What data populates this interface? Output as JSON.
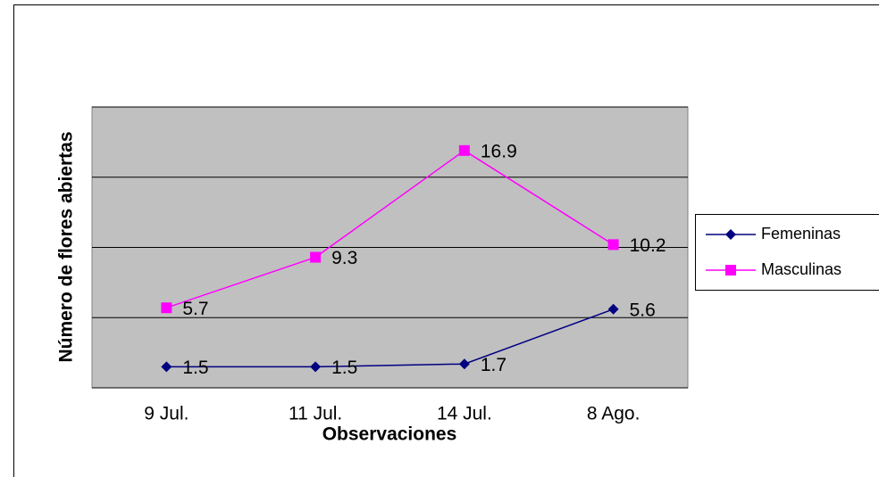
{
  "chart_data": {
    "type": "line",
    "categories": [
      "9 Jul.",
      "11 Jul.",
      "14 Jul.",
      "8 Ago."
    ],
    "series": [
      {
        "name": "Femeninas",
        "color": "#000080",
        "marker": "diamond",
        "values": [
          1.5,
          1.5,
          1.7,
          5.6
        ]
      },
      {
        "name": "Masculinas",
        "color": "#ff00ff",
        "marker": "square",
        "values": [
          5.7,
          9.3,
          16.9,
          10.2
        ]
      }
    ],
    "xlabel": "Observaciones",
    "ylabel": "Número de flores abiertas",
    "ylim": [
      0,
      20
    ],
    "yticks": [
      0,
      5,
      10,
      15,
      20
    ],
    "grid": true,
    "legend": "right"
  }
}
